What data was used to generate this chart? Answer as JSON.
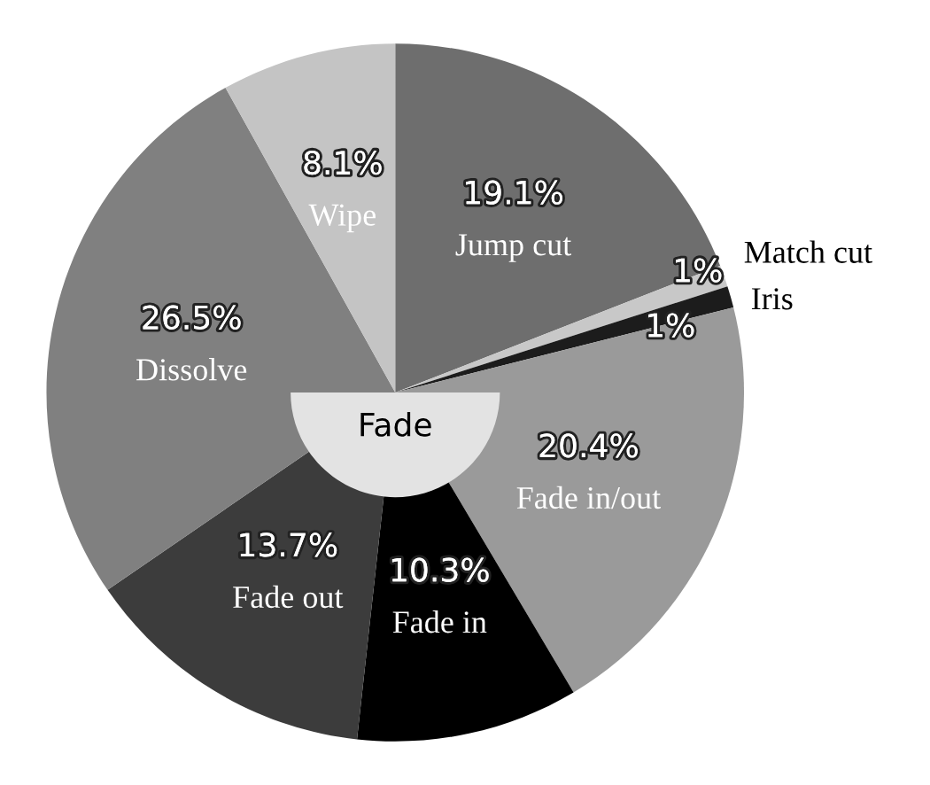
{
  "chart_data": {
    "type": "pie",
    "categories": [
      "Jump cut",
      "Match cut",
      "Iris",
      "Fade in/out",
      "Fade in",
      "Fade out",
      "Dissolve",
      "Wipe"
    ],
    "values": [
      19.1,
      1,
      1,
      20.4,
      10.3,
      13.7,
      26.5,
      8.1
    ],
    "colors": [
      "#6e6e6e",
      "#c8c8c8",
      "#1c1c1c",
      "#9a9a9a",
      "#000000",
      "#3c3c3c",
      "#808080",
      "#c4c4c4"
    ],
    "value_labels": [
      "19.1%",
      "1%",
      "1%",
      "20.4%",
      "10.3%",
      "13.7%",
      "26.5%",
      "8.1%"
    ],
    "annotations": [
      "Fade"
    ]
  }
}
